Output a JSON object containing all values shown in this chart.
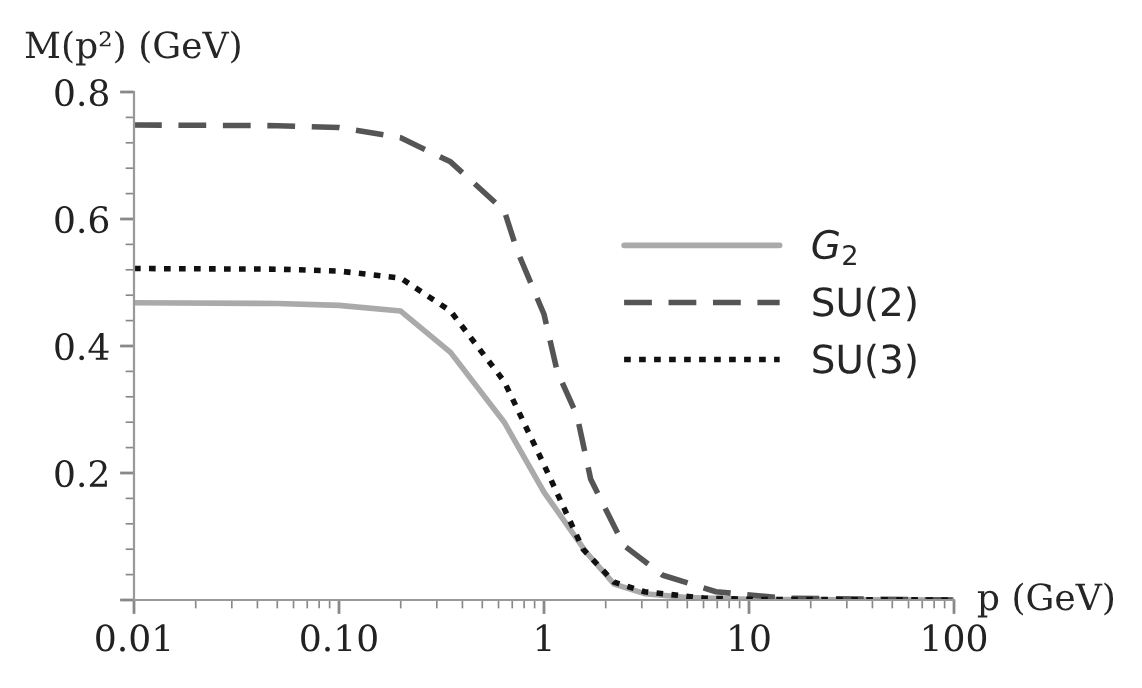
{
  "chart_data": {
    "type": "line",
    "xlabel": "p (GeV)",
    "ylabel": "M(p²) (GeV)",
    "log": "x",
    "xlim": [
      0.01,
      100
    ],
    "xticks": [
      0.01,
      {
        "value": 0.1,
        "label": "0.10"
      },
      1,
      10,
      100
    ],
    "ylim": [
      0,
      0.8
    ],
    "yticks": [
      {
        "value": 0,
        "label": null
      },
      0.2,
      0.4,
      0.6,
      0.8
    ],
    "grid": false,
    "legend": "right",
    "marker": "none",
    "series": [
      {
        "name": "G$_{2}$",
        "color": "#aaaaaa",
        "line_style": "solid",
        "x": [
          0.01,
          0.05,
          0.1,
          0.2,
          0.35,
          0.64,
          1.0,
          1.6,
          2.2,
          3.1,
          5,
          10,
          100
        ],
        "values": [
          0.468,
          0.467,
          0.464,
          0.455,
          0.39,
          0.28,
          0.17,
          0.076,
          0.025,
          0.01,
          0.004,
          0.001,
          0
        ]
      },
      {
        "name": "SU(2)",
        "color": "#555555",
        "line_style": "dashed",
        "x": [
          0.01,
          0.05,
          0.1,
          0.2,
          0.35,
          0.64,
          0.74,
          1.0,
          1.16,
          1.45,
          1.69,
          2.45,
          3.8,
          6.9,
          14.8,
          100
        ],
        "values": [
          0.748,
          0.747,
          0.744,
          0.728,
          0.69,
          0.613,
          0.55,
          0.45,
          0.36,
          0.29,
          0.19,
          0.086,
          0.039,
          0.013,
          0.003,
          0
        ]
      },
      {
        "name": "SU(3)",
        "color": "#111111",
        "line_style": "dotted",
        "x": [
          0.01,
          0.05,
          0.1,
          0.2,
          0.35,
          0.64,
          1.0,
          1.55,
          2.2,
          3.1,
          6,
          10,
          100
        ],
        "values": [
          0.522,
          0.521,
          0.518,
          0.507,
          0.455,
          0.344,
          0.213,
          0.08,
          0.028,
          0.013,
          0.003,
          0.001,
          0
        ]
      }
    ]
  }
}
